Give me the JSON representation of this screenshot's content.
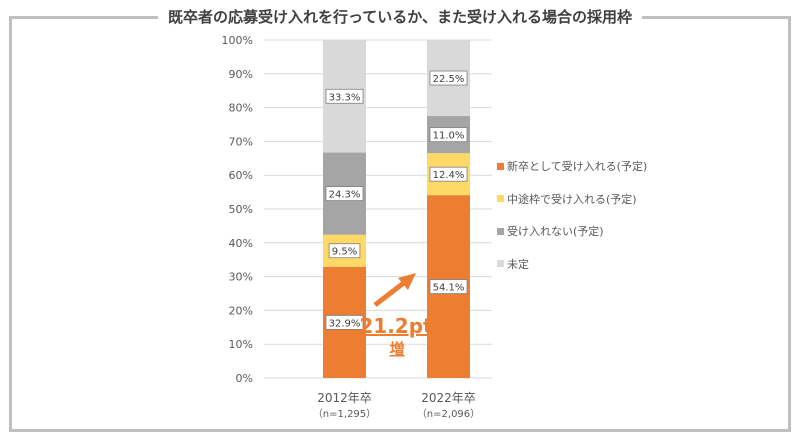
{
  "title": "既卒者の応募受け入れを行っているか、また受け入れる場合の採用枠",
  "chart_data": {
    "type": "bar",
    "stacked": true,
    "title": "既卒者の応募受け入れを行っているか、また受け入れる場合の採用枠",
    "categories": [
      "2012年卒",
      "2022年卒"
    ],
    "category_notes": [
      "（n=1,295）",
      "（n=2,096）"
    ],
    "yticks": [
      "0%",
      "10%",
      "20%",
      "30%",
      "40%",
      "50%",
      "60%",
      "70%",
      "80%",
      "90%",
      "100%"
    ],
    "ylim": [
      0,
      100
    ],
    "series": [
      {
        "name": "新卒として受け入れる(予定)",
        "color": "#ED7D31",
        "values": [
          32.9,
          54.1
        ],
        "labels": [
          "32.9%",
          "54.1%"
        ]
      },
      {
        "name": "中途枠で受け入れる(予定)",
        "color": "#FFD966",
        "values": [
          9.5,
          12.4
        ],
        "labels": [
          "9.5%",
          "12.4%"
        ]
      },
      {
        "name": "受け入れない(予定)",
        "color": "#A5A5A5",
        "values": [
          24.3,
          11.0
        ],
        "labels": [
          "24.3%",
          "11.0%"
        ]
      },
      {
        "name": "未定",
        "color": "#D9D9D9",
        "values": [
          33.3,
          22.5
        ],
        "labels": [
          "33.3%",
          "22.5%"
        ]
      }
    ],
    "annotation": {
      "value": "21.2pt",
      "suffix": "増",
      "color": "#ED7D31"
    },
    "legend_position": "right"
  }
}
